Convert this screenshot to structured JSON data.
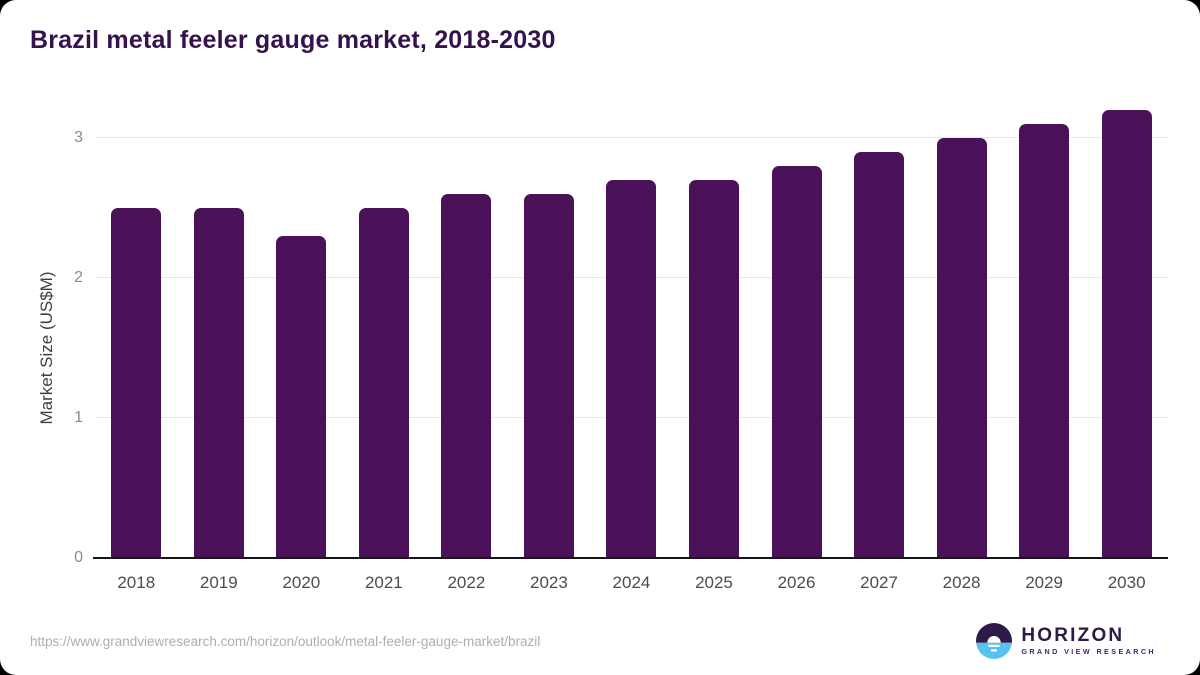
{
  "title": "Brazil metal feeler gauge market, 2018-2030",
  "colors": {
    "bar": "#4a1158",
    "title_text": "#35124e",
    "gridline": "#e6e6e6",
    "axis_line": "#161616",
    "logo_purple": "#2d1a47",
    "logo_blue": "#55c3f2"
  },
  "chart_data": {
    "type": "bar",
    "title": "Brazil metal feeler gauge market, 2018-2030",
    "categories": [
      "2018",
      "2019",
      "2020",
      "2021",
      "2022",
      "2023",
      "2024",
      "2025",
      "2026",
      "2027",
      "2028",
      "2029",
      "2030"
    ],
    "values": [
      2.5,
      2.5,
      2.3,
      2.5,
      2.6,
      2.6,
      2.7,
      2.7,
      2.8,
      2.9,
      3.0,
      3.1,
      3.2
    ],
    "xlabel": "",
    "ylabel": "Market Size (US$M)",
    "yticks": [
      0,
      1,
      2,
      3
    ],
    "ylim": [
      0,
      3.29
    ],
    "grid": "horizontal",
    "legend": "none"
  },
  "footer": {
    "url": "https://www.grandviewresearch.com/horizon/outlook/metal-feeler-gauge-market/brazil",
    "logo_name": "HORIZON",
    "logo_subtitle": "GRAND VIEW RESEARCH"
  }
}
